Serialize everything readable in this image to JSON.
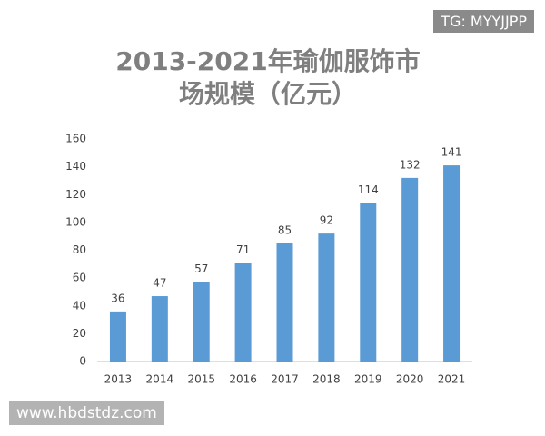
{
  "chart_data": {
    "type": "bar",
    "title": "2013-2021年瑜伽服饰市场规模（亿元）",
    "categories": [
      "2013",
      "2014",
      "2015",
      "2016",
      "2017",
      "2018",
      "2019",
      "2020",
      "2021"
    ],
    "values": [
      36,
      47,
      57,
      71,
      85,
      92,
      114,
      132,
      141
    ],
    "color": "#5b9bd5",
    "ylim": [
      0,
      160
    ],
    "yticks": [
      0,
      20,
      40,
      60,
      80,
      100,
      120,
      140,
      160
    ],
    "grid": false
  },
  "watermarks": [
    "TG: MYYJJPP",
    "www.hbdstdz.com"
  ]
}
